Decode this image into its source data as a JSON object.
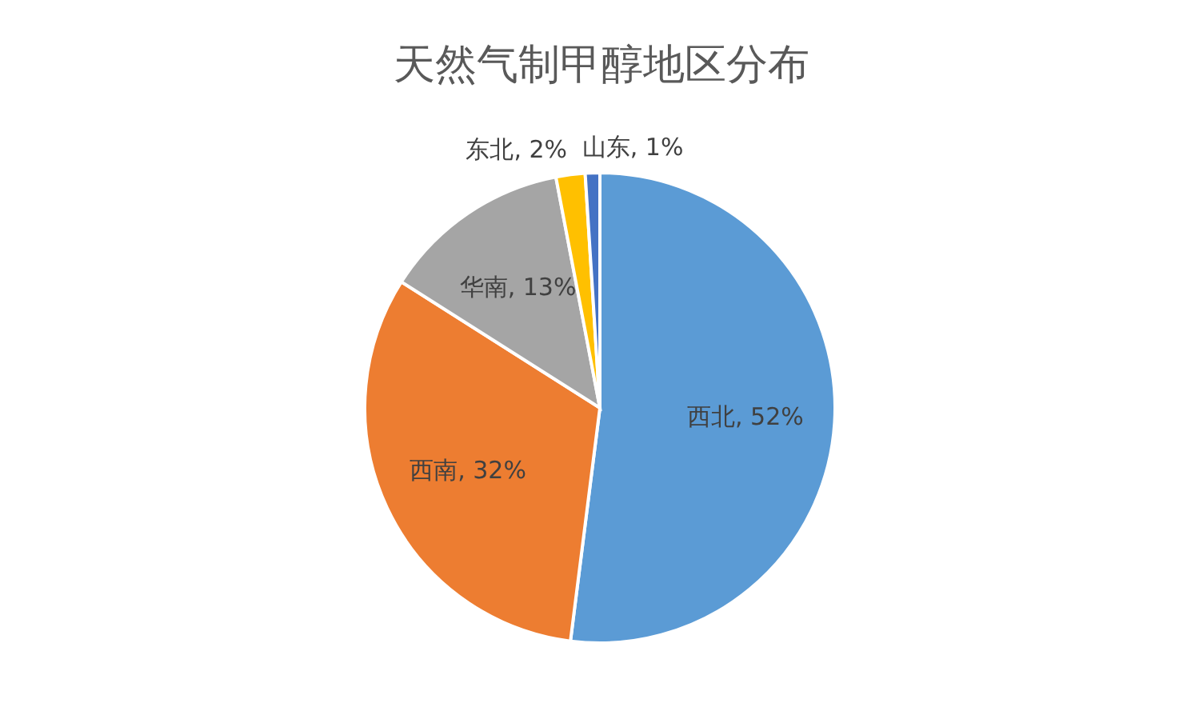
{
  "chart_data": {
    "type": "pie",
    "title": "天然气制甲醇地区分布",
    "categories": [
      "西北",
      "西南",
      "华南",
      "东北",
      "山东"
    ],
    "values": [
      52,
      32,
      13,
      2,
      1
    ],
    "colors": [
      "#5b9bd5",
      "#ed7d31",
      "#a5a5a5",
      "#ffc000",
      "#4472c4"
    ],
    "value_labels": [
      "52%",
      "32%",
      "13%",
      "2%",
      "1%"
    ]
  }
}
